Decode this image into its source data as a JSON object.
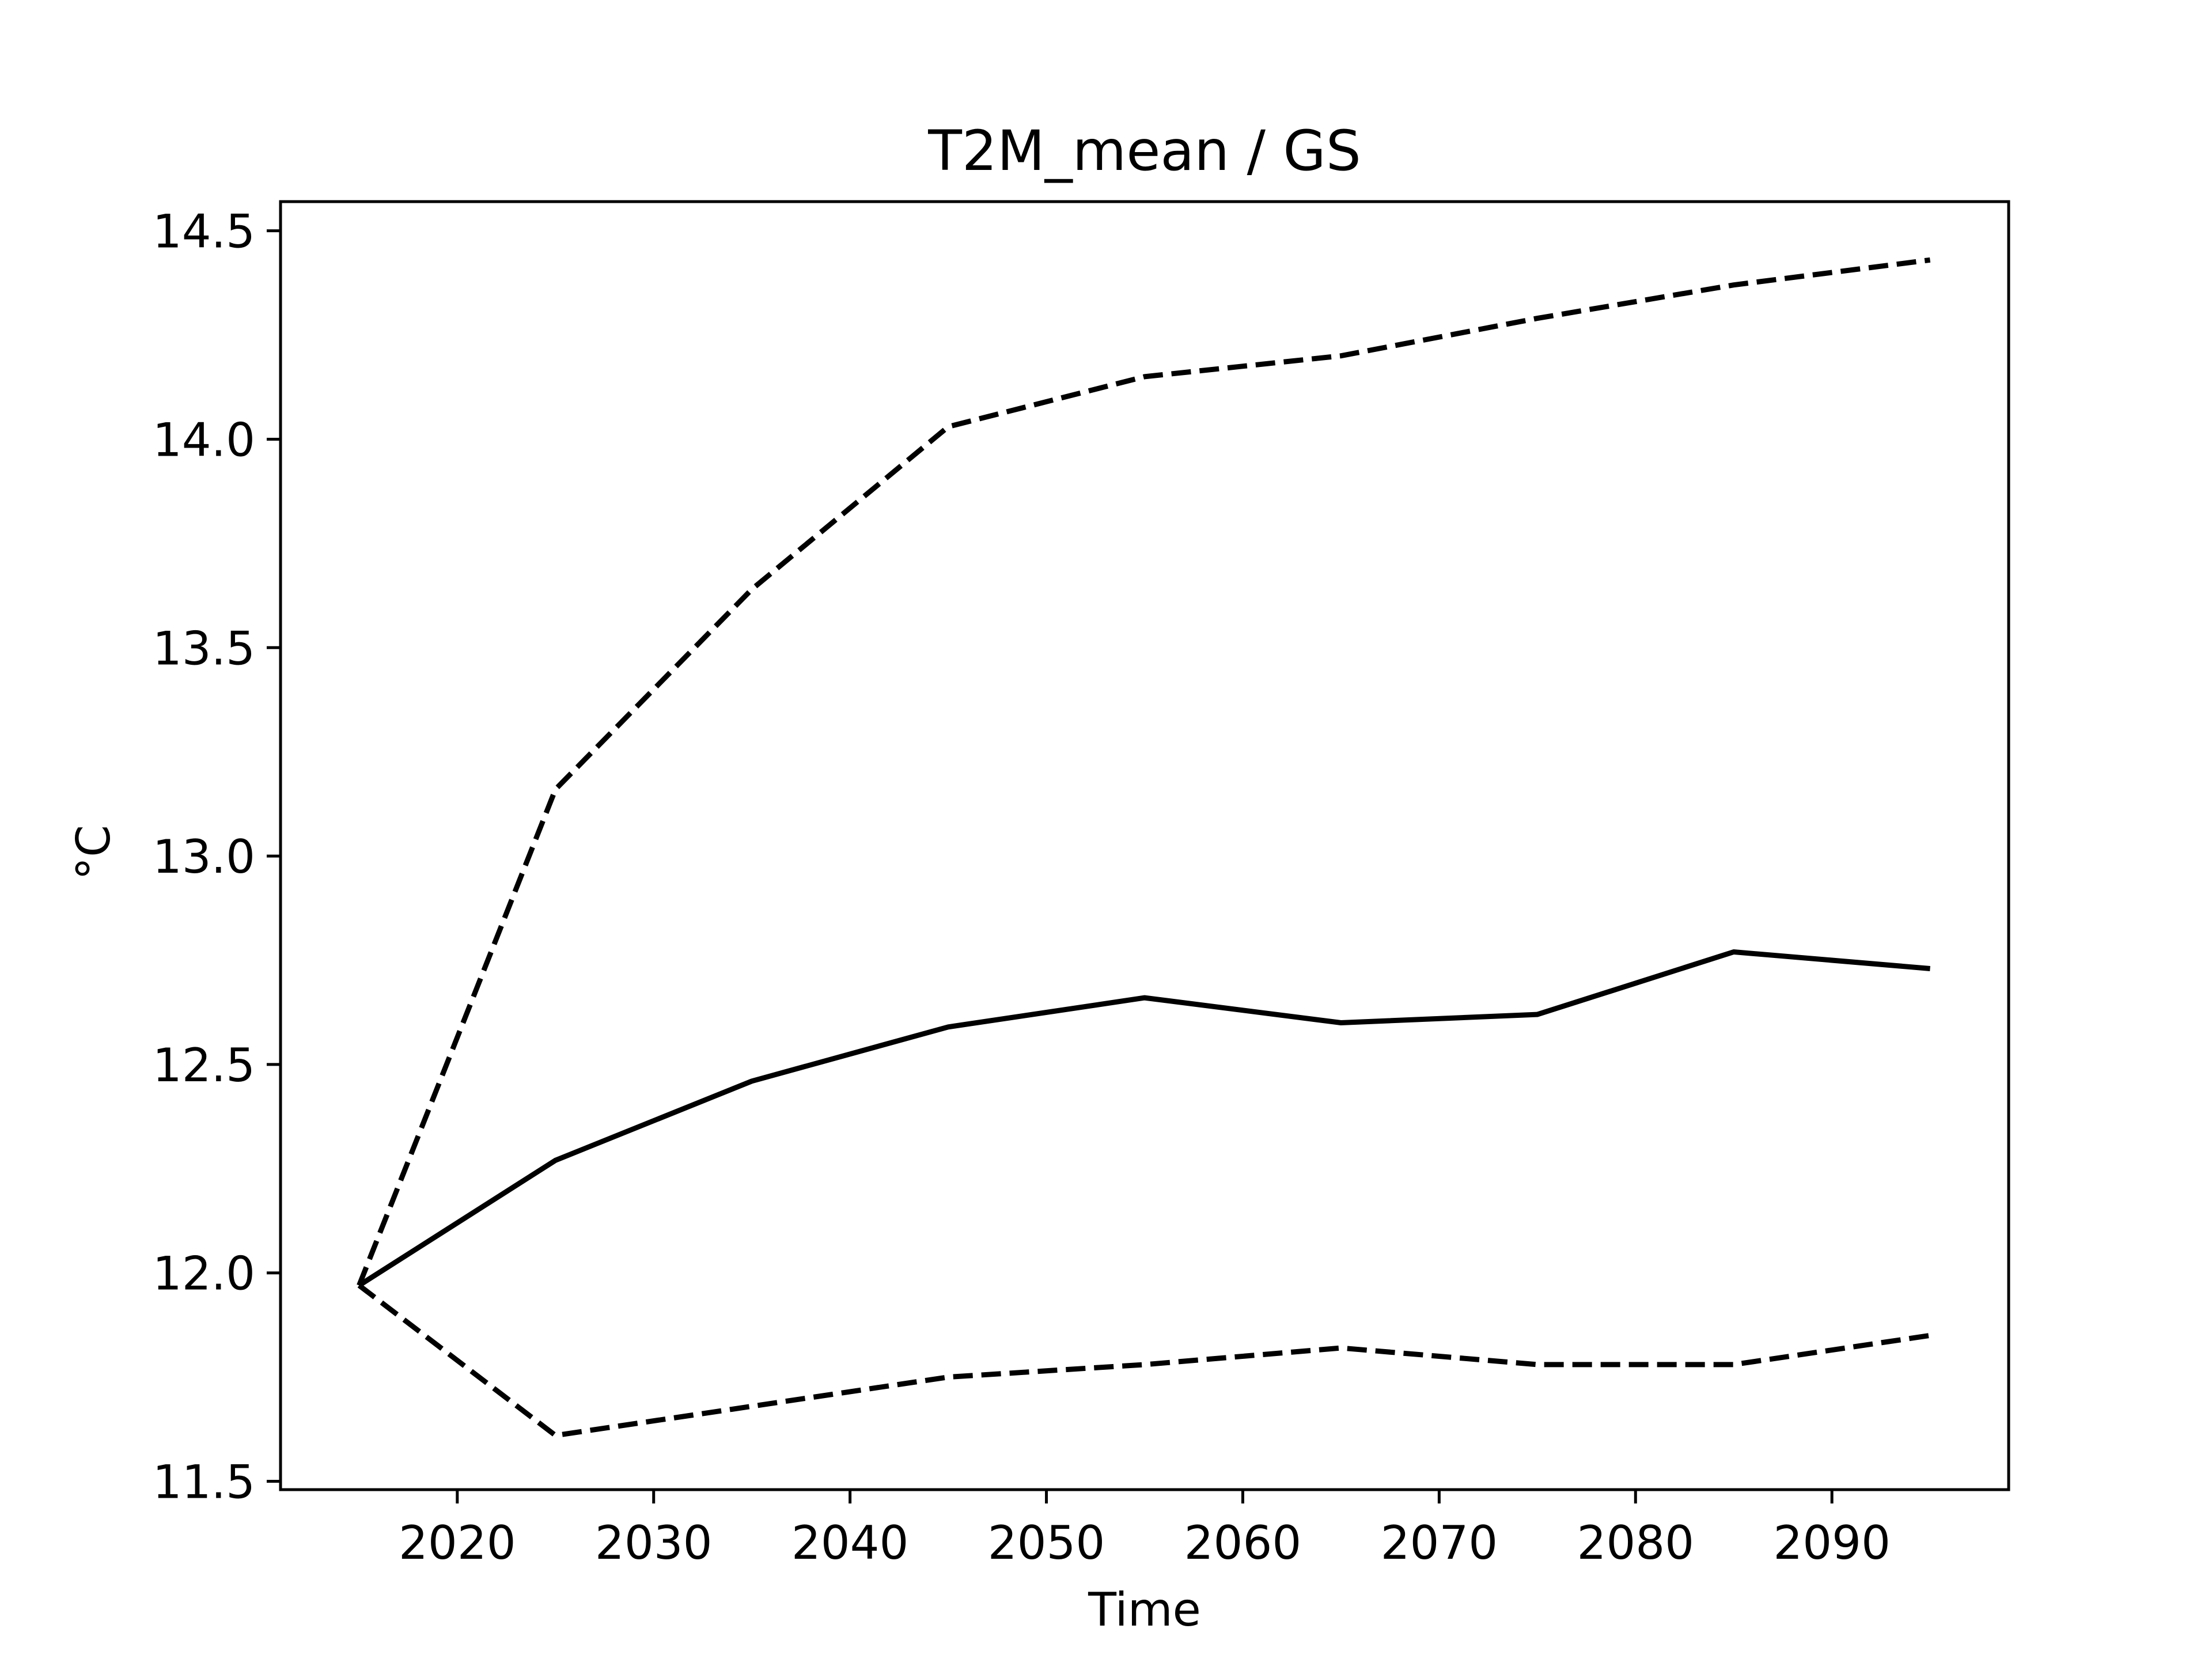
{
  "chart_data": {
    "type": "line",
    "title": "T2M_mean / GS",
    "xlabel": "Time",
    "ylabel": "°C",
    "xlim": [
      2011,
      2099
    ],
    "ylim": [
      11.48,
      14.57
    ],
    "x_ticks": [
      2020,
      2030,
      2040,
      2050,
      2060,
      2070,
      2080,
      2090
    ],
    "y_ticks": [
      11.5,
      12.0,
      12.5,
      13.0,
      13.5,
      14.0,
      14.5
    ],
    "y_tick_labels": [
      "11.5",
      "12.0",
      "12.5",
      "13.0",
      "13.5",
      "14.0",
      "14.5"
    ],
    "grid": false,
    "x": [
      2015,
      2025,
      2035,
      2045,
      2055,
      2065,
      2075,
      2085,
      2095
    ],
    "series": [
      {
        "style": "dashed",
        "color": "#000000",
        "values": [
          11.97,
          13.16,
          13.64,
          14.03,
          14.15,
          14.2,
          14.29,
          14.37,
          14.43
        ]
      },
      {
        "style": "solid",
        "color": "#000000",
        "values": [
          11.97,
          12.27,
          12.46,
          12.59,
          12.66,
          12.6,
          12.62,
          12.77,
          12.73
        ]
      },
      {
        "style": "dashed",
        "color": "#000000",
        "values": [
          11.97,
          11.61,
          11.68,
          11.75,
          11.78,
          11.82,
          11.78,
          11.78,
          11.85
        ]
      }
    ]
  }
}
